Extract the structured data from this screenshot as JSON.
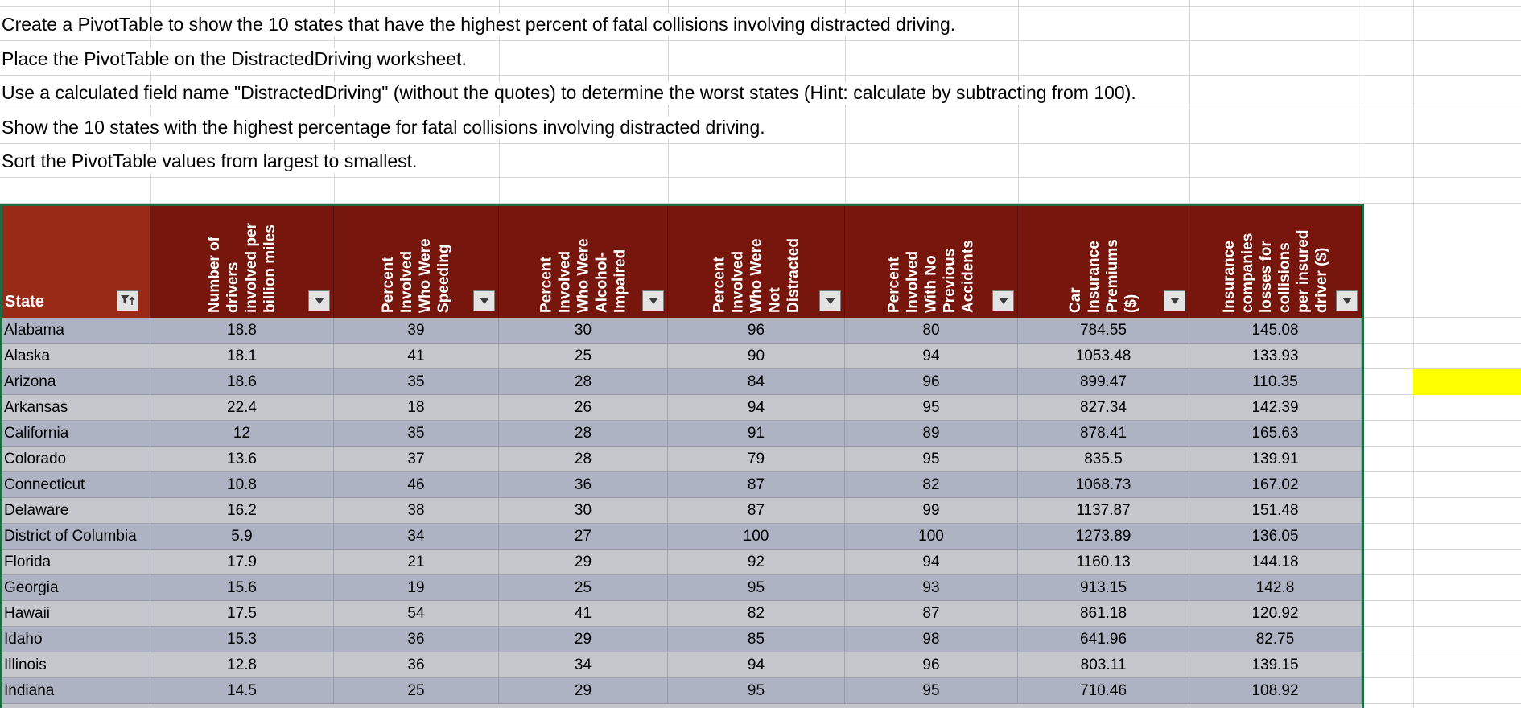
{
  "instructions": [
    "Create a PivotTable to show the 10 states that have the highest percent of fatal collisions involving distracted driving.",
    "Place the PivotTable on the DistractedDriving worksheet.",
    "Use a calculated field name \"DistractedDriving\" (without the quotes) to determine the worst states (Hint: calculate by subtracting from 100).",
    "Show the 10 states with the highest percentage for fatal collisions involving distracted driving.",
    "Sort the PivotTable values from largest to smallest."
  ],
  "table": {
    "columns": [
      {
        "label": "State",
        "lines": [
          "State"
        ],
        "sort_indicator": "ascending-filter"
      },
      {
        "label": "Number of drivers involved per billion miles",
        "lines": [
          "Number of",
          "drivers",
          "involved per",
          "billion miles"
        ]
      },
      {
        "label": "Percent Involved Who Were Speeding",
        "lines": [
          "Percent",
          "Involved",
          "Who Were",
          "Speeding"
        ]
      },
      {
        "label": "Percent Involved Who Were Alcohol-Impaired",
        "lines": [
          "Percent",
          "Involved",
          "Who Were",
          "Alcohol-",
          "Impaired"
        ]
      },
      {
        "label": "Percent Involved Who Were Not Distracted",
        "lines": [
          "Percent",
          "Involved",
          "Who Were",
          "Not",
          "Distracted"
        ]
      },
      {
        "label": "Percent Involved With No Previous Accidents",
        "lines": [
          "Percent",
          "Involved",
          "With No",
          "Previous",
          "Accidents"
        ]
      },
      {
        "label": "Car Insurance Premiums ($)",
        "lines": [
          "Car",
          "Insurance",
          "Premiums",
          "($)"
        ]
      },
      {
        "label": "Insurance companies losses for collisions per insured driver ($)",
        "lines": [
          "Insurance",
          "companies",
          "losses for",
          "collisions",
          "per insured",
          "driver ($)"
        ]
      }
    ],
    "rows": [
      {
        "state": "Alabama",
        "values": [
          "18.8",
          "39",
          "30",
          "96",
          "80",
          "784.55",
          "145.08"
        ]
      },
      {
        "state": "Alaska",
        "values": [
          "18.1",
          "41",
          "25",
          "90",
          "94",
          "1053.48",
          "133.93"
        ]
      },
      {
        "state": "Arizona",
        "values": [
          "18.6",
          "35",
          "28",
          "84",
          "96",
          "899.47",
          "110.35"
        ]
      },
      {
        "state": "Arkansas",
        "values": [
          "22.4",
          "18",
          "26",
          "94",
          "95",
          "827.34",
          "142.39"
        ]
      },
      {
        "state": "California",
        "values": [
          "12",
          "35",
          "28",
          "91",
          "89",
          "878.41",
          "165.63"
        ]
      },
      {
        "state": "Colorado",
        "values": [
          "13.6",
          "37",
          "28",
          "79",
          "95",
          "835.5",
          "139.91"
        ]
      },
      {
        "state": "Connecticut",
        "values": [
          "10.8",
          "46",
          "36",
          "87",
          "82",
          "1068.73",
          "167.02"
        ]
      },
      {
        "state": "Delaware",
        "values": [
          "16.2",
          "38",
          "30",
          "87",
          "99",
          "1137.87",
          "151.48"
        ]
      },
      {
        "state": "District of Columbia",
        "values": [
          "5.9",
          "34",
          "27",
          "100",
          "100",
          "1273.89",
          "136.05"
        ]
      },
      {
        "state": "Florida",
        "values": [
          "17.9",
          "21",
          "29",
          "92",
          "94",
          "1160.13",
          "144.18"
        ]
      },
      {
        "state": "Georgia",
        "values": [
          "15.6",
          "19",
          "25",
          "95",
          "93",
          "913.15",
          "142.8"
        ]
      },
      {
        "state": "Hawaii",
        "values": [
          "17.5",
          "54",
          "41",
          "82",
          "87",
          "861.18",
          "120.92"
        ]
      },
      {
        "state": "Idaho",
        "values": [
          "15.3",
          "36",
          "29",
          "85",
          "98",
          "641.96",
          "82.75"
        ]
      },
      {
        "state": "Illinois",
        "values": [
          "12.8",
          "36",
          "34",
          "94",
          "96",
          "803.11",
          "139.15"
        ]
      },
      {
        "state": "Indiana",
        "values": [
          "14.5",
          "25",
          "29",
          "95",
          "95",
          "710.46",
          "108.92"
        ]
      }
    ]
  },
  "highlight_cell": {
    "row": "Arizona",
    "color": "#ffff00"
  },
  "colors": {
    "header_bg": "#76160c",
    "header_active_bg": "#9a2a18",
    "band_dark": "#adb3c2",
    "band_light": "#c6c7cd",
    "selection_border": "#1f6b43",
    "highlight": "#ffff00",
    "gridline": "#d6d6d6"
  }
}
